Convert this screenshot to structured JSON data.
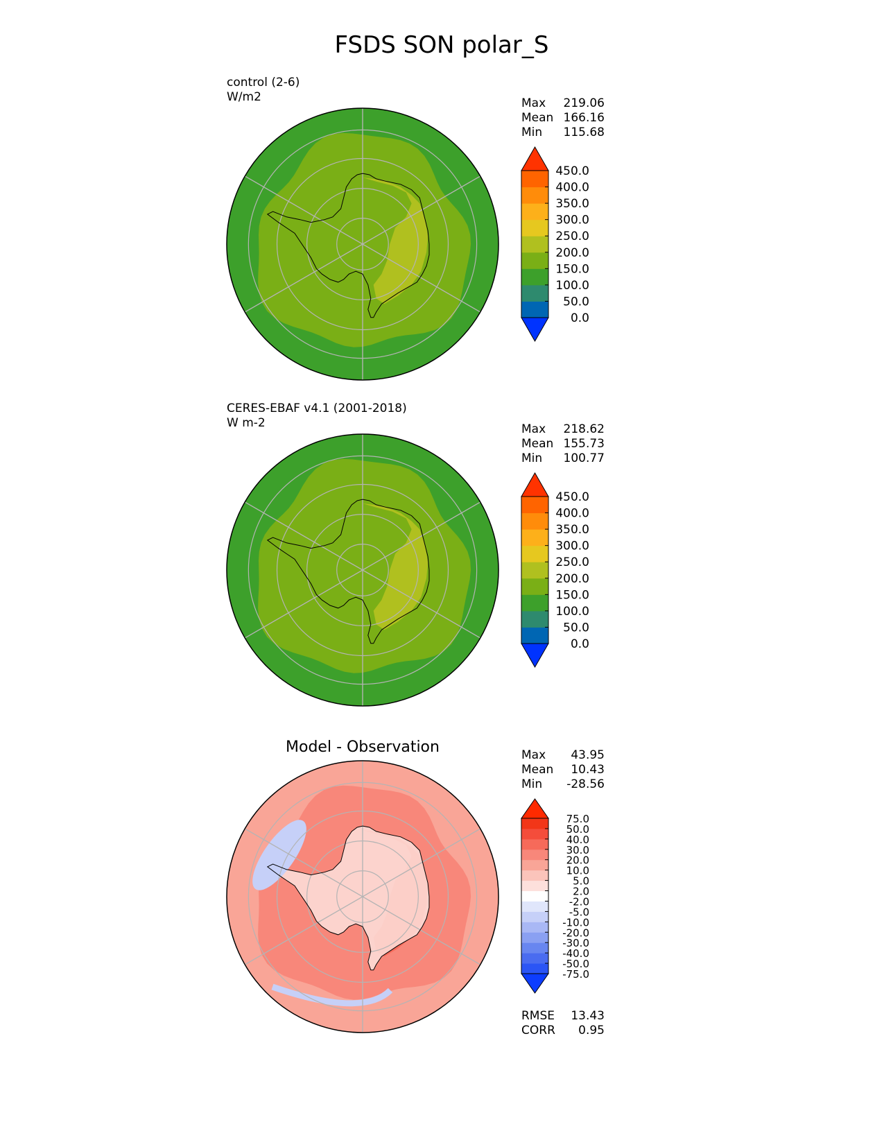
{
  "figure": {
    "title": "FSDS SON polar_S"
  },
  "chart_data": [
    {
      "type": "heatmap",
      "projection": "south-polar-stereographic",
      "title": "",
      "case_name": "control (2-6)",
      "units": "W/m2",
      "stats": {
        "max_label": "Max",
        "mean_label": "Mean",
        "min_label": "Min",
        "max": "219.06",
        "mean": "166.16",
        "min": "115.68"
      },
      "levels": [
        "0.0",
        "50.0",
        "100.0",
        "150.0",
        "200.0",
        "250.0",
        "300.0",
        "350.0",
        "400.0",
        "450.0"
      ],
      "colors": [
        "#0033ff",
        "#0066b3",
        "#2e8a6e",
        "#3da02b",
        "#7aaf16",
        "#b0c01f",
        "#e6c81f",
        "#fdb01a",
        "#ff8c0a",
        "#ff6400",
        "#ff3300"
      ],
      "field": {
        "background_level": 3,
        "ring_level": 4,
        "high_level": 5
      }
    },
    {
      "type": "heatmap",
      "projection": "south-polar-stereographic",
      "title": "",
      "case_name": "CERES-EBAF v4.1 (2001-2018)",
      "units": "W m-2",
      "stats": {
        "max_label": "Max",
        "mean_label": "Mean",
        "min_label": "Min",
        "max": "218.62",
        "mean": "155.73",
        "min": "100.77"
      },
      "levels": [
        "0.0",
        "50.0",
        "100.0",
        "150.0",
        "200.0",
        "250.0",
        "300.0",
        "350.0",
        "400.0",
        "450.0"
      ],
      "colors": [
        "#0033ff",
        "#0066b3",
        "#2e8a6e",
        "#3da02b",
        "#7aaf16",
        "#b0c01f",
        "#e6c81f",
        "#fdb01a",
        "#ff8c0a",
        "#ff6400",
        "#ff3300"
      ],
      "field": {
        "background_level": 3,
        "ring_level": 4,
        "high_level": 5
      }
    },
    {
      "type": "heatmap",
      "projection": "south-polar-stereographic",
      "title": "Model - Observation",
      "case_name": "",
      "units": "",
      "stats": {
        "max_label": "Max",
        "mean_label": "Mean",
        "min_label": "Min",
        "max": "43.95",
        "mean": "10.43",
        "min": "-28.56"
      },
      "levels": [
        "-75.0",
        "-50.0",
        "-40.0",
        "-30.0",
        "-20.0",
        "-10.0",
        "-5.0",
        "-2.0",
        "2.0",
        "5.0",
        "10.0",
        "20.0",
        "30.0",
        "40.0",
        "50.0",
        "75.0"
      ],
      "colors": [
        "#0d3dff",
        "#2b55f5",
        "#4a6cf0",
        "#6886f0",
        "#8aa0f2",
        "#a9b8f5",
        "#c6d0f8",
        "#e0e6fb",
        "#ffffff",
        "#fde0dc",
        "#fbc4bb",
        "#f9a597",
        "#f8877a",
        "#f66a5a",
        "#f44d3b",
        "#f23618",
        "#ff2a00"
      ],
      "field": {
        "background_level": 11,
        "ring_level": 12,
        "high_level": 13
      },
      "metrics": {
        "rmse_label": "RMSE",
        "rmse": "13.43",
        "corr_label": "CORR",
        "corr": "0.95"
      }
    }
  ]
}
